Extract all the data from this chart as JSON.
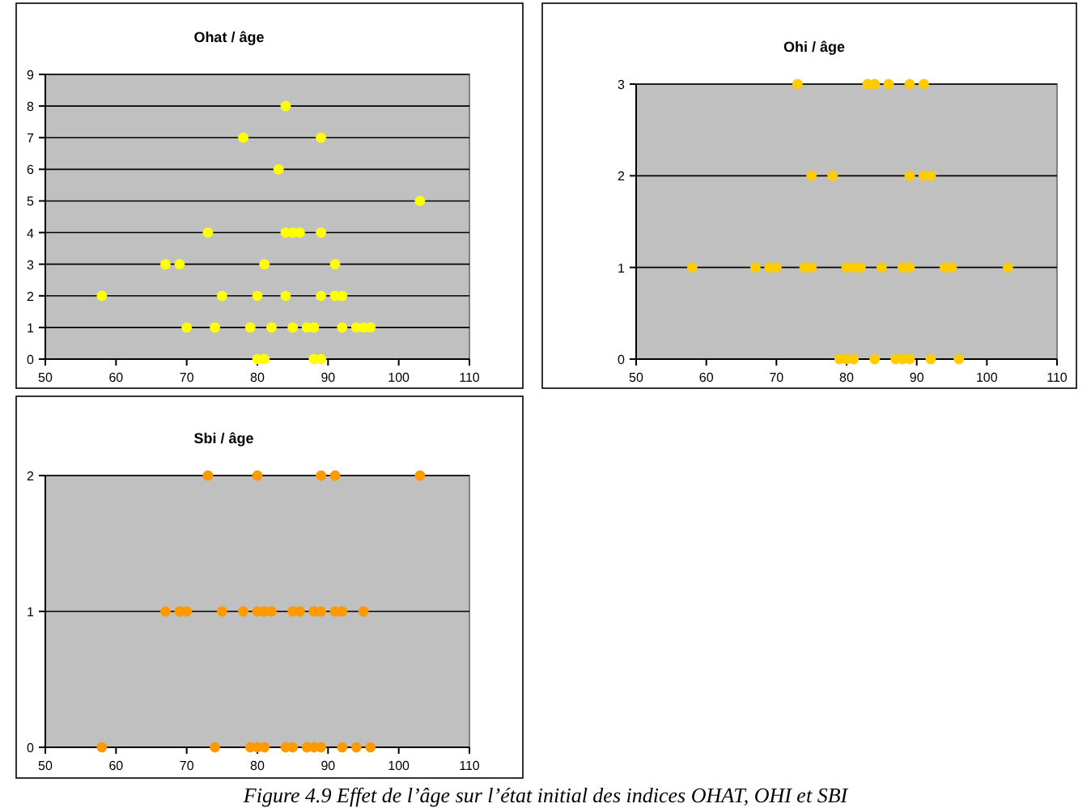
{
  "chart_data": [
    {
      "type": "scatter",
      "title": "Ohat / âge",
      "x": [
        84,
        78,
        89,
        83,
        103,
        73,
        84,
        85,
        86,
        89,
        67,
        69,
        81,
        91,
        58,
        75,
        80,
        84,
        89,
        91,
        92,
        70,
        74,
        79,
        82,
        85,
        87,
        88,
        92,
        94,
        95,
        96,
        80,
        81,
        88,
        89
      ],
      "series": [
        {
          "color": "#ffff00",
          "values": [
            8,
            7,
            7,
            6,
            5,
            4,
            4,
            4,
            4,
            4,
            3,
            3,
            3,
            3,
            2,
            2,
            2,
            2,
            2,
            2,
            2,
            1,
            1,
            1,
            1,
            1,
            1,
            1,
            1,
            1,
            1,
            1,
            0,
            0,
            0,
            0
          ]
        }
      ],
      "xlim": [
        50,
        110
      ],
      "xticks": [
        50,
        60,
        70,
        80,
        90,
        100,
        110
      ],
      "ylim": [
        0,
        9
      ],
      "yticks": [
        0,
        1,
        2,
        3,
        4,
        5,
        6,
        7,
        8,
        9
      ],
      "grid": "y",
      "marker": "circle",
      "legend": false
    },
    {
      "type": "scatter",
      "title": "Ohi / âge",
      "x": [
        73,
        83,
        84,
        86,
        89,
        91,
        75,
        78,
        89,
        91,
        92,
        58,
        67,
        69,
        70,
        74,
        75,
        80,
        81,
        82,
        85,
        88,
        89,
        94,
        95,
        103,
        79,
        80,
        81,
        84,
        87,
        88,
        89,
        92,
        96
      ],
      "series": [
        {
          "color": "#ffcc00",
          "values": [
            3,
            3,
            3,
            3,
            3,
            3,
            2,
            2,
            2,
            2,
            2,
            1,
            1,
            1,
            1,
            1,
            1,
            1,
            1,
            1,
            1,
            1,
            1,
            1,
            1,
            1,
            0,
            0,
            0,
            0,
            0,
            0,
            0,
            0,
            0
          ]
        }
      ],
      "xlim": [
        50,
        110
      ],
      "xticks": [
        50,
        60,
        70,
        80,
        90,
        100,
        110
      ],
      "ylim": [
        0,
        3
      ],
      "yticks": [
        0,
        1,
        2,
        3
      ],
      "grid": "y",
      "marker": "circle",
      "legend": false
    },
    {
      "type": "scatter",
      "title": "Sbi / âge",
      "x": [
        73,
        80,
        89,
        91,
        103,
        67,
        69,
        70,
        75,
        78,
        80,
        81,
        82,
        85,
        86,
        88,
        89,
        91,
        92,
        95,
        58,
        74,
        79,
        80,
        81,
        84,
        85,
        87,
        88,
        89,
        92,
        94,
        96
      ],
      "series": [
        {
          "color": "#ff9900",
          "values": [
            2,
            2,
            2,
            2,
            2,
            1,
            1,
            1,
            1,
            1,
            1,
            1,
            1,
            1,
            1,
            1,
            1,
            1,
            1,
            1,
            0,
            0,
            0,
            0,
            0,
            0,
            0,
            0,
            0,
            0,
            0,
            0,
            0
          ]
        }
      ],
      "xlim": [
        50,
        110
      ],
      "xticks": [
        50,
        60,
        70,
        80,
        90,
        100,
        110
      ],
      "ylim": [
        0,
        2
      ],
      "yticks": [
        0,
        1,
        2
      ],
      "grid": "y",
      "marker": "circle",
      "legend": false,
      "annotations": [
        "Figure 4.9 Effet de l’âge sur l’état initial des indices OHAT, OHI et SBI"
      ]
    }
  ]
}
